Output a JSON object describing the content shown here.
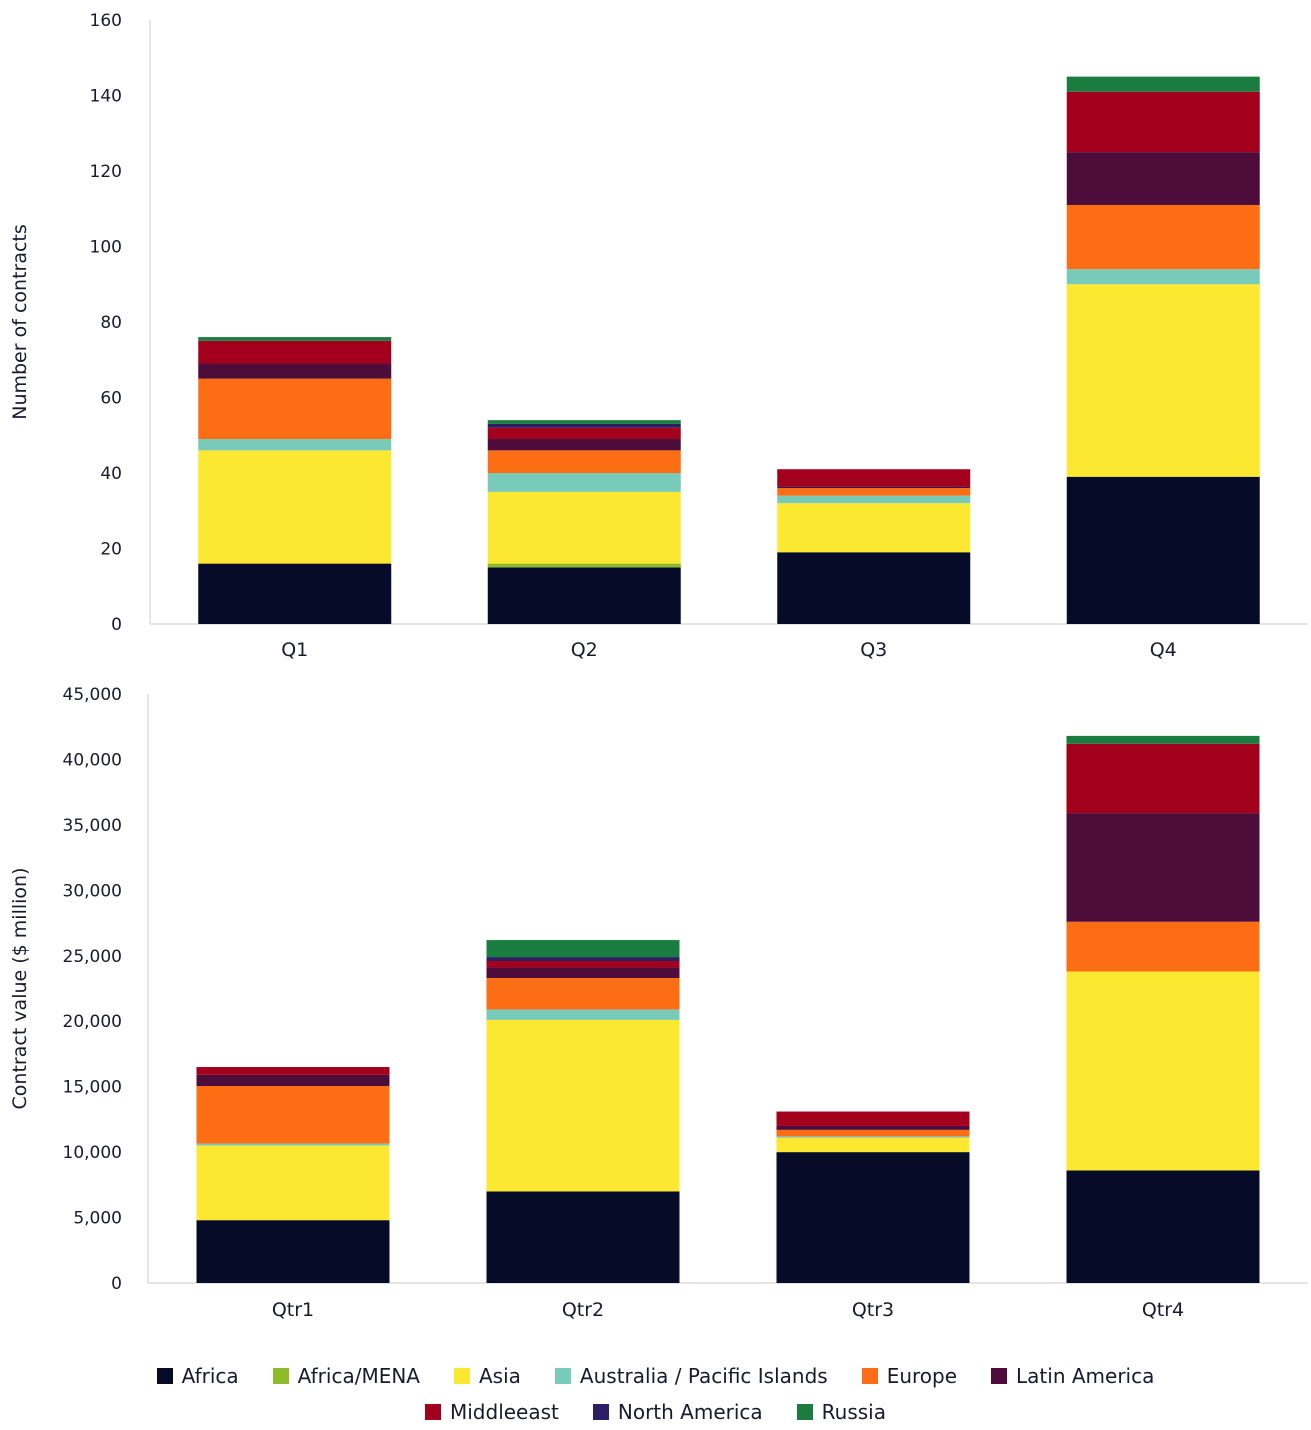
{
  "chart_data": [
    {
      "type": "bar",
      "stacked": true,
      "categories": [
        "Q1",
        "Q2",
        "Q3",
        "Q4"
      ],
      "ylabel": "Number of contracts",
      "ylim": [
        0,
        160
      ],
      "yticks": [
        0,
        20,
        40,
        60,
        80,
        100,
        120,
        140,
        160
      ],
      "ytick_labels": [
        "0",
        "20",
        "40",
        "60",
        "80",
        "100",
        "120",
        "140",
        "160"
      ],
      "series": [
        {
          "name": "Africa",
          "color": "#060c28",
          "values": [
            16,
            15,
            19,
            39
          ]
        },
        {
          "name": "Africa/MENA",
          "color": "#8dbb2a",
          "values": [
            0,
            1,
            0,
            0
          ]
        },
        {
          "name": "Asia",
          "color": "#fde831",
          "values": [
            30,
            19,
            13,
            51
          ]
        },
        {
          "name": "Australia / Pacific Islands",
          "color": "#78cbb9",
          "values": [
            3,
            5,
            2,
            4
          ]
        },
        {
          "name": "Europe",
          "color": "#fd6e14",
          "values": [
            16,
            6,
            2,
            17
          ]
        },
        {
          "name": "Latin America",
          "color": "#4d0c3a",
          "values": [
            4,
            3,
            0.5,
            14
          ]
        },
        {
          "name": "Middleeast",
          "color": "#a3001e",
          "values": [
            6,
            3,
            4.5,
            16
          ]
        },
        {
          "name": "North America",
          "color": "#2c1e63",
          "values": [
            0,
            1,
            0,
            0
          ]
        },
        {
          "name": "Russia",
          "color": "#1a7d3f",
          "values": [
            1,
            1,
            0,
            4
          ]
        }
      ]
    },
    {
      "type": "bar",
      "stacked": true,
      "categories": [
        "Qtr1",
        "Qtr2",
        "Qtr3",
        "Qtr4"
      ],
      "ylabel": "Contract value ($ million)",
      "ylim": [
        0,
        45000
      ],
      "yticks": [
        0,
        5000,
        10000,
        15000,
        20000,
        25000,
        30000,
        35000,
        40000,
        45000
      ],
      "ytick_labels": [
        "0",
        "5,000",
        "10,000",
        "15,000",
        "20,000",
        "25,000",
        "30,000",
        "35,000",
        "40,000",
        "45,000"
      ],
      "series": [
        {
          "name": "Africa",
          "color": "#060c28",
          "values": [
            4800,
            7000,
            10000,
            8600
          ]
        },
        {
          "name": "Africa/MENA",
          "color": "#8dbb2a",
          "values": [
            0,
            0,
            0,
            0
          ]
        },
        {
          "name": "Asia",
          "color": "#fde831",
          "values": [
            5700,
            13100,
            1100,
            15200
          ]
        },
        {
          "name": "Australia / Pacific Islands",
          "color": "#78cbb9",
          "values": [
            150,
            800,
            100,
            0
          ]
        },
        {
          "name": "Europe",
          "color": "#fd6e14",
          "values": [
            4400,
            2400,
            500,
            3800
          ]
        },
        {
          "name": "Latin America",
          "color": "#4d0c3a",
          "values": [
            850,
            800,
            300,
            8300
          ]
        },
        {
          "name": "Middleeast",
          "color": "#a3001e",
          "values": [
            600,
            500,
            1100,
            5300
          ]
        },
        {
          "name": "North America",
          "color": "#2c1e63",
          "values": [
            0,
            300,
            0,
            0
          ]
        },
        {
          "name": "Russia",
          "color": "#1a7d3f",
          "values": [
            0,
            1300,
            0,
            600
          ]
        }
      ]
    }
  ],
  "legend": {
    "rows": [
      [
        {
          "label": "Africa",
          "color": "#060c28"
        },
        {
          "label": "Africa/MENA",
          "color": "#8dbb2a"
        },
        {
          "label": "Asia",
          "color": "#fde831"
        },
        {
          "label": "Australia / Pacific Islands",
          "color": "#78cbb9"
        },
        {
          "label": "Europe",
          "color": "#fd6e14"
        },
        {
          "label": "Latin America",
          "color": "#4d0c3a"
        }
      ],
      [
        {
          "label": "Middleeast",
          "color": "#a3001e"
        },
        {
          "label": "North America",
          "color": "#2c1e63"
        },
        {
          "label": "Russia",
          "color": "#1a7d3f"
        }
      ]
    ]
  }
}
